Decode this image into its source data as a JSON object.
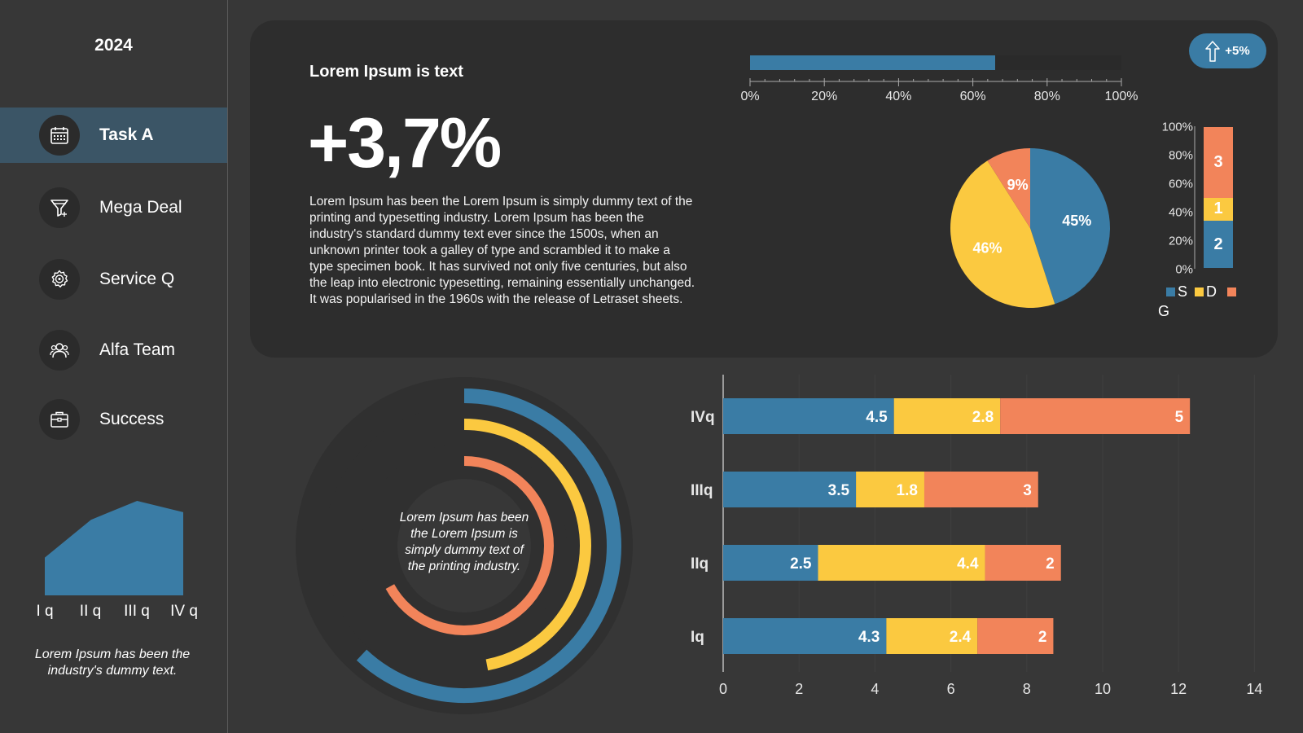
{
  "sidebar": {
    "year": "2024",
    "items": [
      {
        "label": "Task A",
        "icon": "calendar-icon",
        "active": true
      },
      {
        "label": "Mega Deal",
        "icon": "funnel-icon",
        "active": false
      },
      {
        "label": "Service Q",
        "icon": "gear-icon",
        "active": false
      },
      {
        "label": "Alfa Team",
        "icon": "team-icon",
        "active": false
      },
      {
        "label": "Success",
        "icon": "briefcase-icon",
        "active": false
      }
    ],
    "mini_chart": {
      "type": "area",
      "categories": [
        "I q",
        "II q",
        "III q",
        "IV q"
      ],
      "values": [
        40,
        80,
        100,
        88
      ],
      "ylim": [
        0,
        100
      ],
      "color": "#3a7ca5"
    },
    "note": "Lorem Ipsum has been the industry's dummy text."
  },
  "summary": {
    "subtitle": "Lorem Ipsum is text",
    "big_number": "+3,7%",
    "paragraph": "Lorem Ipsum has been the Lorem Ipsum is simply dummy text of the printing and typesetting industry. Lorem Ipsum has been the industry's standard dummy text ever since the 1500s, when an unknown printer took a galley of type and scrambled it to make a type specimen book. It has survived not only five centuries, but also the leap into electronic typesetting, remaining essentially unchanged. It was popularised in the 1960s with the release of Letraset sheets.",
    "badge": "+5%"
  },
  "colors": {
    "blue": "#3a7ca5",
    "yellow": "#fbc940",
    "orange": "#f2845a",
    "card": "#2d2d2d",
    "background": "#373737"
  },
  "circle_note": "Lorem Ipsum has been the Lorem Ipsum is simply dummy text of the printing industry.",
  "chart_data": [
    {
      "type": "bar",
      "orientation": "horizontal",
      "values": [
        66
      ],
      "ticks": [
        "0%",
        "20%",
        "40%",
        "60%",
        "80%",
        "100%"
      ],
      "xlim": [
        0,
        100
      ]
    },
    {
      "type": "pie",
      "labels": [
        "45%",
        "46%",
        "9%"
      ],
      "values": [
        45,
        46,
        9
      ],
      "colors": [
        "#3a7ca5",
        "#fbc940",
        "#f2845a"
      ]
    },
    {
      "type": "bar",
      "orientation": "vertical-stacked",
      "ticks": [
        "100%",
        "80%",
        "60%",
        "40%",
        "20%",
        "0%"
      ],
      "segments": [
        {
          "value": 2,
          "color": "#3a7ca5"
        },
        {
          "value": 1,
          "color": "#fbc940"
        },
        {
          "value": 3,
          "color": "#f2845a"
        }
      ],
      "legend": [
        {
          "name": "S",
          "color": "#3a7ca5"
        },
        {
          "name": "D",
          "color": "#fbc940"
        },
        {
          "name": "G",
          "color": "#f2845a"
        }
      ]
    },
    {
      "type": "radial-bar",
      "values": [
        62,
        47,
        67
      ],
      "max": 100,
      "colors": [
        "#3a7ca5",
        "#fbc940",
        "#f2845a"
      ]
    },
    {
      "type": "bar",
      "orientation": "horizontal-stacked",
      "categories": [
        "IVq",
        "IIIq",
        "IIq",
        "Iq"
      ],
      "series": [
        {
          "values": [
            4.5,
            3.5,
            2.5,
            4.3
          ],
          "color": "#3a7ca5"
        },
        {
          "values": [
            2.8,
            1.8,
            4.4,
            2.4
          ],
          "color": "#fbc940"
        },
        {
          "values": [
            5,
            3,
            2,
            2
          ],
          "color": "#f2845a"
        }
      ],
      "xlim": [
        0,
        14
      ],
      "xticks": [
        "0",
        "2",
        "4",
        "6",
        "8",
        "10",
        "12",
        "14"
      ]
    }
  ]
}
